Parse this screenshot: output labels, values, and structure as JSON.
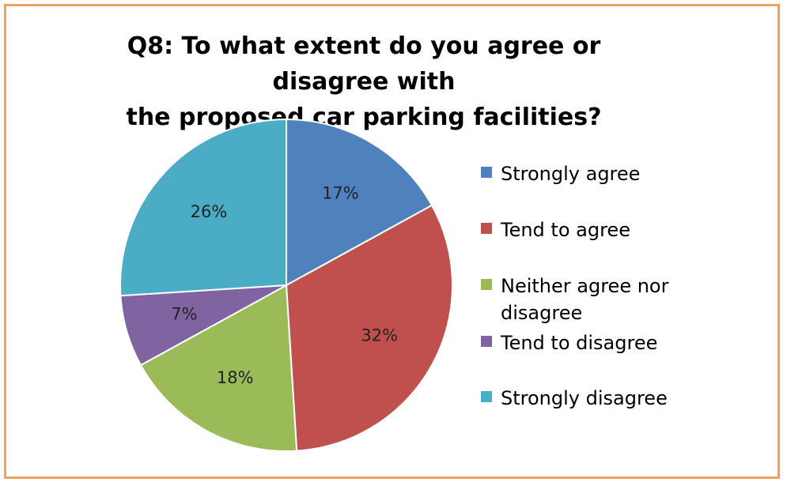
{
  "chart_data": {
    "type": "pie",
    "title": "Q8: To what extent do you agree or disagree with the proposed car parking facilities?",
    "title_lines": [
      "Q8: To what extent do you agree or disagree with",
      "the proposed car parking facilities?"
    ],
    "categories": [
      "Strongly agree",
      "Tend to agree",
      "Neither agree nor disagree",
      "Tend to disagree",
      "Strongly disagree"
    ],
    "values": [
      17,
      32,
      18,
      7,
      26
    ],
    "value_labels": [
      "17%",
      "32%",
      "18%",
      "7%",
      "26%"
    ],
    "colors": [
      "#4F81BD",
      "#C0504D",
      "#9BBB59",
      "#8064A2",
      "#4BACC6"
    ],
    "legend": {
      "placement": "right",
      "lines": [
        [
          "Strongly agree"
        ],
        [
          "Tend to agree"
        ],
        [
          "Neither agree nor",
          "disagree"
        ],
        [
          "Tend to disagree"
        ],
        [
          "Strongly disagree"
        ]
      ]
    },
    "border_color": "#F2A15A"
  }
}
